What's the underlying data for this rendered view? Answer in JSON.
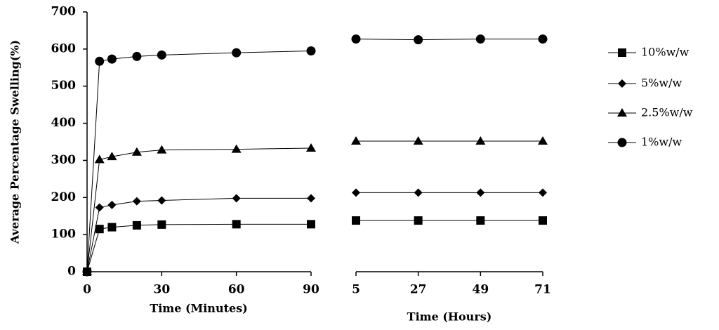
{
  "chart_data": [
    {
      "type": "line",
      "y_label": "Average Percentage Swelling(%)",
      "x_label": "Time (Minutes)",
      "x": [
        0,
        5,
        10,
        20,
        30,
        60,
        90
      ],
      "xlim": [
        0,
        90
      ],
      "xticks": [
        0,
        30,
        60,
        90
      ],
      "ylim": [
        0,
        700
      ],
      "yticks": [
        0,
        100,
        200,
        300,
        400,
        500,
        600,
        700
      ],
      "legend": "right",
      "series": [
        {
          "name": "10%w/w",
          "color": "#000000",
          "marker": "square",
          "values": [
            0,
            115,
            120,
            125,
            127,
            128,
            128
          ]
        },
        {
          "name": "5%w/w",
          "color": "#000000",
          "marker": "diamond",
          "values": [
            0,
            173,
            180,
            190,
            192,
            198,
            198
          ]
        },
        {
          "name": "2.5%w/w",
          "color": "#000000",
          "marker": "triangle",
          "values": [
            0,
            302,
            310,
            322,
            328,
            330,
            333
          ]
        },
        {
          "name": "1%w/w",
          "color": "#000000",
          "marker": "circle",
          "values": [
            0,
            567,
            573,
            580,
            584,
            590,
            595
          ]
        }
      ]
    },
    {
      "type": "line",
      "x_label": "Time (Hours)",
      "x": [
        5,
        27,
        49,
        71
      ],
      "xlim": [
        5,
        71
      ],
      "xticks": [
        5,
        27,
        49,
        71
      ],
      "ylim": [
        0,
        700
      ],
      "series": [
        {
          "color": "#000000",
          "marker": "square",
          "values": [
            138,
            138,
            138,
            138
          ]
        },
        {
          "color": "#000000",
          "marker": "diamond",
          "values": [
            213,
            213,
            213,
            213
          ]
        },
        {
          "color": "#000000",
          "marker": "triangle",
          "values": [
            352,
            352,
            352,
            352
          ]
        },
        {
          "color": "#000000",
          "marker": "circle",
          "values": [
            627,
            625,
            627,
            627
          ]
        }
      ]
    }
  ]
}
